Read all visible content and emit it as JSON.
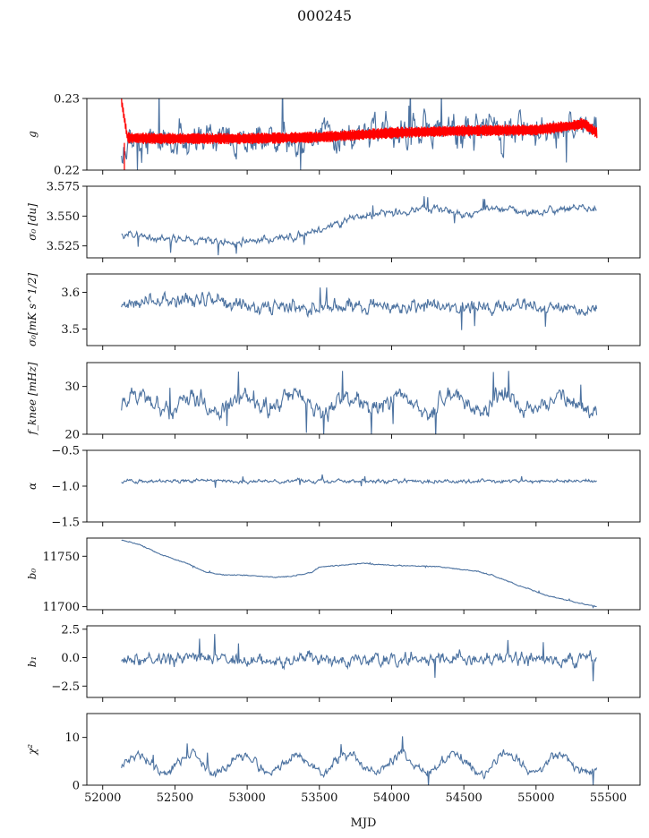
{
  "figure": {
    "title": "000245",
    "xlabel": "MJD"
  },
  "colors": {
    "series": "#4c72a0",
    "highlight": "#ff0000",
    "frame": "#000000"
  },
  "chart_data": [
    {
      "type": "line",
      "id": "g",
      "ylabel": "g",
      "ylim": [
        0.22,
        0.23
      ],
      "yticks": [
        0.22,
        0.23
      ],
      "ytick_labels": [
        "0.22",
        "0.23"
      ],
      "xlim": [
        51890,
        55720
      ],
      "x_range": [
        52130,
        55420
      ],
      "series": [
        {
          "color_key": "series",
          "baseline": [
            [
              52130,
              0.2235
            ],
            [
              52600,
              0.2242
            ],
            [
              53000,
              0.2243
            ],
            [
              53500,
              0.2245
            ],
            [
              54000,
              0.225
            ],
            [
              54500,
              0.2254
            ],
            [
              55000,
              0.2256
            ],
            [
              55200,
              0.2257
            ],
            [
              55420,
              0.2252
            ]
          ],
          "noise": 0.0022,
          "min_clip": 0.22
        },
        {
          "color_key": "highlight",
          "band": true,
          "baseline": [
            [
              52130,
              0.2295
            ],
            [
              52170,
              0.2245
            ],
            [
              52400,
              0.2244
            ],
            [
              53000,
              0.2244
            ],
            [
              53500,
              0.2246
            ],
            [
              54000,
              0.2252
            ],
            [
              54500,
              0.2255
            ],
            [
              55000,
              0.2256
            ],
            [
              55250,
              0.2262
            ],
            [
              55330,
              0.2265
            ],
            [
              55420,
              0.2252
            ]
          ],
          "width": 0.0016,
          "spike_x": 52150
        }
      ]
    },
    {
      "type": "line",
      "id": "sigma0_du",
      "ylabel": "σ₀ [du]",
      "ylim": [
        3.515,
        3.575
      ],
      "yticks": [
        3.525,
        3.55,
        3.575
      ],
      "ytick_labels": [
        "3.525",
        "3.550",
        "3.575"
      ],
      "xlim": [
        51890,
        55720
      ],
      "x_range": [
        52130,
        55420
      ],
      "series": [
        {
          "color_key": "series",
          "baseline": [
            [
              52130,
              3.537
            ],
            [
              52300,
              3.532
            ],
            [
              52600,
              3.53
            ],
            [
              52900,
              3.528
            ],
            [
              53200,
              3.531
            ],
            [
              53400,
              3.535
            ],
            [
              53600,
              3.542
            ],
            [
              53700,
              3.548
            ],
            [
              54000,
              3.553
            ],
            [
              54300,
              3.556
            ],
            [
              54500,
              3.552
            ],
            [
              54700,
              3.556
            ],
            [
              55000,
              3.553
            ],
            [
              55300,
              3.557
            ],
            [
              55420,
              3.556
            ]
          ],
          "noise": 0.003
        }
      ]
    },
    {
      "type": "line",
      "id": "sigma0_mk",
      "ylabel": "σ₀[mK s^1/2]",
      "ylim": [
        3.455,
        3.65
      ],
      "yticks": [
        3.5,
        3.6
      ],
      "ytick_labels": [
        "3.5",
        "3.6"
      ],
      "xlim": [
        51890,
        55720
      ],
      "x_range": [
        52130,
        55420
      ],
      "series": [
        {
          "color_key": "series",
          "baseline": [
            [
              52130,
              3.57
            ],
            [
              52500,
              3.575
            ],
            [
              52750,
              3.58
            ],
            [
              53000,
              3.56
            ],
            [
              53500,
              3.565
            ],
            [
              54000,
              3.56
            ],
            [
              54500,
              3.565
            ],
            [
              55000,
              3.56
            ],
            [
              55420,
              3.55
            ]
          ],
          "noise": 0.018
        }
      ]
    },
    {
      "type": "line",
      "id": "fknee",
      "ylabel": "f_knee [mHz]",
      "ylim": [
        20,
        35
      ],
      "yticks": [
        20,
        30
      ],
      "ytick_labels": [
        "20",
        "30"
      ],
      "xlim": [
        51890,
        55720
      ],
      "x_range": [
        52130,
        55420
      ],
      "series": [
        {
          "color_key": "series",
          "baseline": [
            [
              52130,
              26.5
            ],
            [
              55420,
              26.5
            ]
          ],
          "noise": 1.8,
          "seasonal": 1.6
        }
      ]
    },
    {
      "type": "line",
      "id": "alpha",
      "ylabel": "α",
      "ylim": [
        -1.5,
        -0.5
      ],
      "yticks": [
        -1.5,
        -1.0,
        -0.5
      ],
      "ytick_labels": [
        "−1.5",
        "−1.0",
        "−0.5"
      ],
      "xlim": [
        51890,
        55720
      ],
      "x_range": [
        52130,
        55420
      ],
      "series": [
        {
          "color_key": "series",
          "baseline": [
            [
              52130,
              -0.93
            ],
            [
              55420,
              -0.93
            ]
          ],
          "noise": 0.025
        }
      ]
    },
    {
      "type": "line",
      "id": "b0",
      "ylabel": "b₀",
      "ylim": [
        11697,
        11768
      ],
      "yticks": [
        11700,
        11750
      ],
      "ytick_labels": [
        "11700",
        "11750"
      ],
      "xlim": [
        51890,
        55720
      ],
      "x_range": [
        52130,
        55420
      ],
      "series": [
        {
          "color_key": "series",
          "baseline": [
            [
              52130,
              11766
            ],
            [
              52250,
              11762
            ],
            [
              52400,
              11752
            ],
            [
              52600,
              11742
            ],
            [
              52700,
              11735
            ],
            [
              52800,
              11732
            ],
            [
              53000,
              11731
            ],
            [
              53200,
              11729
            ],
            [
              53300,
              11730
            ],
            [
              53450,
              11734
            ],
            [
              53500,
              11739
            ],
            [
              53800,
              11743
            ],
            [
              54000,
              11741
            ],
            [
              54300,
              11740
            ],
            [
              54600,
              11735
            ],
            [
              54700,
              11731
            ],
            [
              54900,
              11720
            ],
            [
              55100,
              11710
            ],
            [
              55420,
              11700
            ]
          ],
          "noise": 0.5
        }
      ]
    },
    {
      "type": "line",
      "id": "b1",
      "ylabel": "b₁",
      "ylim": [
        -3.5,
        2.8
      ],
      "yticks": [
        -2.5,
        0.0,
        2.5
      ],
      "ytick_labels": [
        "−2.5",
        "0.0",
        "2.5"
      ],
      "xlim": [
        51890,
        55720
      ],
      "x_range": [
        52130,
        55420
      ],
      "series": [
        {
          "color_key": "series",
          "baseline": [
            [
              52130,
              -0.1
            ],
            [
              55420,
              -0.1
            ]
          ],
          "noise": 0.55
        }
      ]
    },
    {
      "type": "line",
      "id": "chi2",
      "ylabel": "χ²",
      "ylim": [
        0,
        15
      ],
      "yticks": [
        0,
        10
      ],
      "ytick_labels": [
        "0",
        "10"
      ],
      "xlim": [
        51890,
        55720
      ],
      "x_range": [
        52130,
        55420
      ],
      "xticks": [
        52000,
        52500,
        53000,
        53500,
        54000,
        54500,
        55000,
        55500
      ],
      "xtick_labels": [
        "52000",
        "52500",
        "53000",
        "53500",
        "54000",
        "54500",
        "55000",
        "55500"
      ],
      "series": [
        {
          "color_key": "series",
          "baseline": [
            [
              52130,
              4.5
            ],
            [
              55420,
              4.5
            ]
          ],
          "noise": 0.9,
          "seasonal": 1.8
        }
      ]
    }
  ]
}
